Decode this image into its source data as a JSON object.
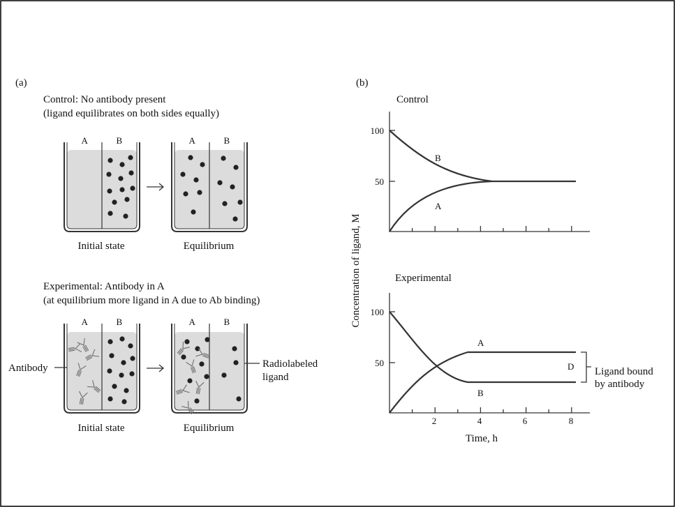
{
  "panel_a": {
    "label": "(a)",
    "control": {
      "title": "Control: No antibody present",
      "subtitle": "(ligand equilibrates on both sides equally)",
      "side_a": "A",
      "side_b": "B",
      "initial_caption": "Initial state",
      "equilibrium_caption": "Equilibrium"
    },
    "experimental": {
      "title": "Experimental: Antibody in A",
      "subtitle": "(at equilibrium more ligand in A due to Ab binding)",
      "side_a": "A",
      "side_b": "B",
      "initial_caption": "Initial state",
      "equilibrium_caption": "Equilibrium",
      "antibody_label": "Antibody",
      "ligand_label": [
        "Radiolabeled",
        "ligand"
      ]
    }
  },
  "panel_b": {
    "label": "(b)",
    "y_axis_label": "Concentration of ligand, M",
    "x_axis_label": "Time, h",
    "xticks": [
      "2",
      "4",
      "6",
      "8"
    ],
    "control": {
      "title": "Control",
      "yticks": [
        "100",
        "50"
      ],
      "curve_b": "B",
      "curve_a": "A"
    },
    "experimental": {
      "title": "Experimental",
      "yticks": [
        "100",
        "50"
      ],
      "curve_a": "A",
      "curve_b": "B",
      "difference": "D",
      "bracket_label": [
        "Ligand bound",
        "by antibody"
      ]
    }
  }
}
